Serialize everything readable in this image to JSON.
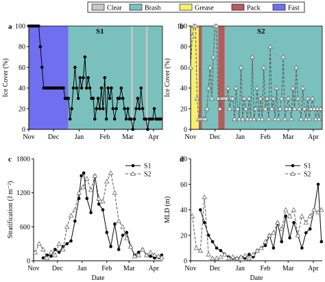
{
  "legend": {
    "items": [
      {
        "label": "Clear",
        "color": "#c8c8c8"
      },
      {
        "label": "Brash",
        "color": "#7ac1bd"
      },
      {
        "label": "Grease",
        "color": "#f6ef70"
      },
      {
        "label": "Pack",
        "color": "#b35c5c"
      },
      {
        "label": "Fast",
        "color": "#6f6fef"
      }
    ]
  },
  "chart_data": [
    {
      "panel": "a",
      "type": "line",
      "site": "S1",
      "xlabel": "",
      "ylabel": "Ice Cover (%)",
      "xlim": [
        0,
        162
      ],
      "ylim": [
        0,
        100
      ],
      "yticks": [
        0,
        20,
        40,
        60,
        80,
        100
      ],
      "xticks": [
        {
          "label": "Nov",
          "day": 0
        },
        {
          "label": "Dec",
          "day": 30
        },
        {
          "label": "Jan",
          "day": 61
        },
        {
          "label": "Feb",
          "day": 92
        },
        {
          "label": "Mar",
          "day": 120
        },
        {
          "label": "Apr",
          "day": 151
        }
      ],
      "bands": [
        {
          "type": "Fast",
          "x0": 0,
          "x1": 48
        },
        {
          "type": "Brash",
          "x0": 48,
          "x1": 162
        },
        {
          "type": "Clear",
          "x0": 124,
          "x1": 126
        },
        {
          "type": "Clear",
          "x0": 142,
          "x1": 144
        }
      ],
      "series": [
        {
          "name": "S1",
          "marker": "dot",
          "x": [
            0,
            2,
            4,
            6,
            8,
            10,
            12,
            14,
            16,
            18,
            20,
            22,
            24,
            26,
            28,
            30,
            32,
            34,
            36,
            38,
            40,
            42,
            44,
            46,
            48,
            50,
            52,
            54,
            56,
            58,
            60,
            62,
            64,
            66,
            68,
            70,
            72,
            74,
            76,
            78,
            80,
            82,
            84,
            86,
            88,
            90,
            92,
            94,
            96,
            98,
            100,
            102,
            104,
            106,
            108,
            110,
            112,
            114,
            116,
            118,
            120,
            122,
            124,
            126,
            128,
            130,
            132,
            134,
            136,
            138,
            140,
            142,
            144,
            146,
            148,
            150,
            152,
            154,
            156,
            158,
            160
          ],
          "y": [
            100,
            100,
            100,
            100,
            100,
            100,
            100,
            80,
            60,
            40,
            40,
            40,
            40,
            40,
            40,
            40,
            40,
            40,
            40,
            40,
            40,
            40,
            30,
            30,
            30,
            10,
            20,
            40,
            60,
            40,
            30,
            50,
            40,
            50,
            70,
            40,
            50,
            40,
            30,
            30,
            10,
            20,
            30,
            20,
            40,
            20,
            50,
            10,
            40,
            30,
            40,
            20,
            10,
            20,
            30,
            30,
            40,
            30,
            20,
            10,
            20,
            10,
            10,
            0,
            10,
            20,
            30,
            20,
            40,
            20,
            10,
            10,
            0,
            10,
            10,
            10,
            20,
            10,
            10,
            10,
            10
          ]
        }
      ]
    },
    {
      "panel": "b",
      "type": "line",
      "site": "S2",
      "xlabel": "",
      "ylabel": "Ice Cover (%)",
      "xlim": [
        0,
        162
      ],
      "ylim": [
        0,
        100
      ],
      "yticks": [
        0,
        20,
        40,
        60,
        80,
        100
      ],
      "xticks": [
        {
          "label": "Nov",
          "day": 0
        },
        {
          "label": "Dec",
          "day": 30
        },
        {
          "label": "Jan",
          "day": 61
        },
        {
          "label": "Feb",
          "day": 92
        },
        {
          "label": "Mar",
          "day": 120
        },
        {
          "label": "Apr",
          "day": 151
        }
      ],
      "bands": [
        {
          "type": "Grease",
          "x0": 0,
          "x1": 10
        },
        {
          "type": "Pack",
          "x0": 10,
          "x1": 14
        },
        {
          "type": "Brash",
          "x0": 14,
          "x1": 34
        },
        {
          "type": "Pack",
          "x0": 34,
          "x1": 42
        },
        {
          "type": "Brash",
          "x0": 42,
          "x1": 162
        }
      ],
      "series": [
        {
          "name": "S2",
          "marker": "triangle-open",
          "dashed": true,
          "x": [
            0,
            2,
            4,
            6,
            8,
            10,
            12,
            14,
            16,
            18,
            20,
            22,
            24,
            26,
            28,
            30,
            32,
            34,
            36,
            38,
            40,
            42,
            44,
            46,
            48,
            50,
            52,
            54,
            56,
            58,
            60,
            62,
            64,
            66,
            68,
            70,
            72,
            74,
            76,
            78,
            80,
            82,
            84,
            86,
            88,
            90,
            92,
            94,
            96,
            98,
            100,
            102,
            104,
            106,
            108,
            110,
            112,
            114,
            116,
            118,
            120,
            122,
            124,
            126,
            128,
            130,
            132,
            134,
            136,
            138,
            140,
            142,
            144,
            146,
            148,
            150,
            152,
            154,
            156,
            158,
            160
          ],
          "y": [
            60,
            90,
            100,
            100,
            30,
            10,
            10,
            10,
            10,
            10,
            20,
            40,
            60,
            30,
            70,
            100,
            100,
            30,
            20,
            30,
            30,
            30,
            30,
            40,
            20,
            30,
            30,
            10,
            40,
            20,
            10,
            60,
            10,
            30,
            20,
            10,
            30,
            10,
            70,
            10,
            20,
            40,
            10,
            30,
            10,
            60,
            20,
            30,
            10,
            80,
            20,
            30,
            10,
            40,
            10,
            20,
            30,
            70,
            10,
            20,
            30,
            20,
            10,
            40,
            20,
            60,
            30,
            20,
            10,
            40,
            20,
            10,
            30,
            10,
            20,
            30,
            20,
            10,
            20,
            10,
            20
          ]
        }
      ]
    },
    {
      "panel": "c",
      "type": "line",
      "xlabel": "Date",
      "ylabel": "Stratification (J m⁻²)",
      "xlim": [
        0,
        162
      ],
      "ylim": [
        0,
        1800
      ],
      "yticks": [
        0,
        600,
        1200,
        1800
      ],
      "xticks": [
        {
          "label": "Nov",
          "day": 0
        },
        {
          "label": "Dec",
          "day": 30
        },
        {
          "label": "Jan",
          "day": 61
        },
        {
          "label": "Feb",
          "day": 92
        },
        {
          "label": "Mar",
          "day": 120
        },
        {
          "label": "Apr",
          "day": 151
        }
      ],
      "legend": "top-right",
      "series": [
        {
          "name": "S1",
          "marker": "dot",
          "x": [
            12,
            17,
            22,
            27,
            32,
            37,
            42,
            47,
            52,
            57,
            60,
            63,
            67,
            72,
            77,
            82,
            87,
            92,
            97,
            102,
            107,
            112,
            117,
            122,
            127,
            132,
            137,
            142,
            147,
            152,
            157,
            161
          ],
          "y": [
            50,
            100,
            80,
            200,
            150,
            250,
            300,
            350,
            700,
            1100,
            1500,
            1550,
            1100,
            850,
            1500,
            1000,
            900,
            500,
            250,
            650,
            200,
            450,
            500,
            250,
            100,
            150,
            200,
            100,
            80,
            50,
            60,
            100
          ]
        },
        {
          "name": "S2",
          "marker": "triangle-open",
          "dashed": true,
          "x": [
            2,
            7,
            12,
            17,
            22,
            27,
            32,
            37,
            42,
            47,
            52,
            57,
            62,
            67,
            72,
            77,
            82,
            87,
            92,
            97,
            102,
            107,
            112,
            117,
            122,
            127,
            132,
            137,
            142,
            147,
            152,
            157,
            161
          ],
          "y": [
            150,
            300,
            200,
            50,
            150,
            100,
            300,
            200,
            600,
            800,
            900,
            1200,
            1300,
            1450,
            1250,
            1500,
            1100,
            1050,
            1400,
            1550,
            1200,
            700,
            600,
            400,
            250,
            80,
            100,
            200,
            100,
            150,
            100,
            80,
            60
          ]
        }
      ]
    },
    {
      "panel": "d",
      "type": "line",
      "xlabel": "Date",
      "ylabel": "MLD (m)",
      "xlim": [
        0,
        162
      ],
      "ylim": [
        0,
        80
      ],
      "yticks": [
        0,
        20,
        40,
        60,
        80
      ],
      "xticks": [
        {
          "label": "Nov",
          "day": 0
        },
        {
          "label": "Dec",
          "day": 30
        },
        {
          "label": "Jan",
          "day": 61
        },
        {
          "label": "Feb",
          "day": 92
        },
        {
          "label": "Mar",
          "day": 120
        },
        {
          "label": "Apr",
          "day": 151
        }
      ],
      "legend": "top-right",
      "series": [
        {
          "name": "S1",
          "marker": "dot",
          "x": [
            12,
            17,
            22,
            27,
            32,
            37,
            42,
            47,
            52,
            57,
            62,
            67,
            72,
            77,
            82,
            87,
            92,
            97,
            102,
            107,
            112,
            117,
            122,
            127,
            132,
            137,
            142,
            147,
            152,
            157,
            161
          ],
          "y": [
            40,
            30,
            20,
            15,
            10,
            8,
            5,
            3,
            2,
            2,
            3,
            2,
            5,
            3,
            8,
            10,
            12,
            20,
            10,
            30,
            15,
            35,
            18,
            30,
            20,
            10,
            22,
            25,
            40,
            60,
            15
          ]
        },
        {
          "name": "S2",
          "marker": "triangle-open",
          "dashed": true,
          "x": [
            2,
            7,
            12,
            17,
            22,
            27,
            32,
            37,
            42,
            47,
            52,
            57,
            62,
            67,
            72,
            77,
            82,
            87,
            92,
            97,
            102,
            107,
            112,
            117,
            122,
            127,
            132,
            137,
            142,
            147,
            152,
            157,
            161
          ],
          "y": [
            35,
            10,
            8,
            50,
            5,
            2,
            2,
            3,
            5,
            2,
            3,
            2,
            3,
            4,
            2,
            5,
            8,
            10,
            15,
            20,
            22,
            30,
            25,
            40,
            35,
            40,
            20,
            35,
            30,
            35,
            40,
            38,
            40
          ]
        }
      ]
    }
  ]
}
